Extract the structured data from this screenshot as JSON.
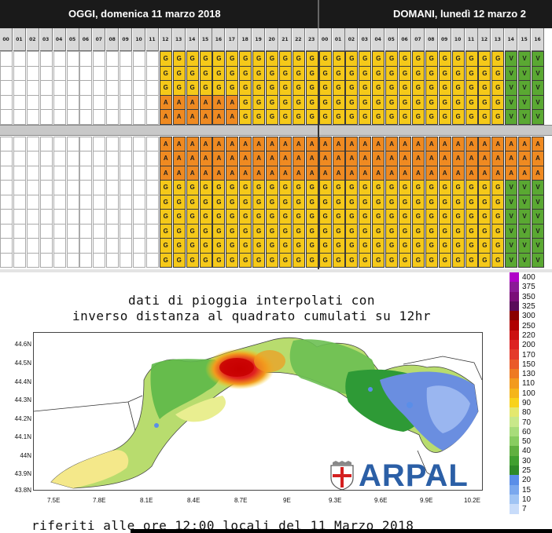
{
  "alert_table": {
    "day_today": "OGGI, domenica 11 marzo 2018",
    "day_tomorrow": "DOMANI, lunedì 12 marzo 2",
    "hours": [
      "00",
      "01",
      "02",
      "03",
      "04",
      "05",
      "06",
      "07",
      "08",
      "09",
      "10",
      "11",
      "12",
      "13",
      "14",
      "15",
      "16",
      "17",
      "18",
      "19",
      "20",
      "21",
      "22",
      "23",
      "00",
      "01",
      "02",
      "03",
      "04",
      "05",
      "06",
      "07",
      "08",
      "09",
      "10",
      "11",
      "12",
      "13",
      "14",
      "15",
      "16"
    ],
    "colors": {
      "G": "#f5c919",
      "A": "#ef8a21",
      "V": "#5aa832",
      "empty": "#ffffff"
    },
    "rows": [
      "            GGGGGGGGGGGGGGGGGGGGGGGGGGVVV",
      "            GGGGGGGGGGGGGGGGGGGGGGGGGGVVV",
      "            GGGGGGGGGGGGGGGGGGGGGGGGGGVVV",
      "            AAAAAAGGGGGGGGGGGGGGGGGGGGVVV",
      "            AAAAAAGGGGGGGGGGGGGGGGGGGGVVV",
      "",
      "            AAAAAAAAAAAAAAAAAAAAAAAAAAAAA",
      "            AAAAAAAAAAAAAAAAAAAAAAAAAAAAA",
      "            AAAAAAAAAAAAAAAAAAAAAAAAAAAAA",
      "            GGGGGGGGGGGGGGGGGGGGGGGGGGVVV",
      "            GGGGGGGGGGGGGGGGGGGGGGGGGGVVV",
      "            GGGGGGGGGGGGGGGGGGGGGGGGGGVVV",
      "            GGGGGGGGGGGGGGGGGGGGGGGGGGVVV",
      "            GGGGGGGGGGGGGGGGGGGGGGGGGGVVV",
      "            GGGGGGGGGGGGGGGGGGGGGGGGGGVVV"
    ]
  },
  "rain_map": {
    "title_line1": "dati di pioggia interpolati con",
    "title_line2": "inverso distanza al quadrato cumulati su 12hr",
    "footer": "riferiti alle ore 12:00 locali del 11 Marzo 2018",
    "logo_text": "ARPAL",
    "y_ticks": [
      "44.6N",
      "44.5N",
      "44.4N",
      "44.3N",
      "44.2N",
      "44.1N",
      "44N",
      "43.9N",
      "43.8N"
    ],
    "x_ticks": [
      "7.5E",
      "7.8E",
      "8.1E",
      "8.4E",
      "8.7E",
      "9E",
      "9.3E",
      "9.6E",
      "9.9E",
      "10.2E"
    ],
    "colorbar_labels": [
      "400",
      "375",
      "350",
      "325",
      "300",
      "250",
      "220",
      "200",
      "170",
      "150",
      "130",
      "110",
      "100",
      "90",
      "80",
      "70",
      "60",
      "50",
      "40",
      "30",
      "25",
      "20",
      "15",
      "10",
      "7"
    ],
    "colorbar_colors": [
      "#b000c8",
      "#8a1a96",
      "#7a0e78",
      "#5a0b5a",
      "#8a0000",
      "#b00000",
      "#cc1010",
      "#dd2222",
      "#e43a2a",
      "#ea5a28",
      "#ee7a22",
      "#f29a1e",
      "#f5b51a",
      "#f8d21a",
      "#e4e86e",
      "#c8e88a",
      "#a8dc7a",
      "#88cc60",
      "#60b040",
      "#40a030",
      "#2e8a28",
      "#5a8ee8",
      "#7aa8ee",
      "#a0c4f4",
      "#c8dcfa"
    ]
  }
}
